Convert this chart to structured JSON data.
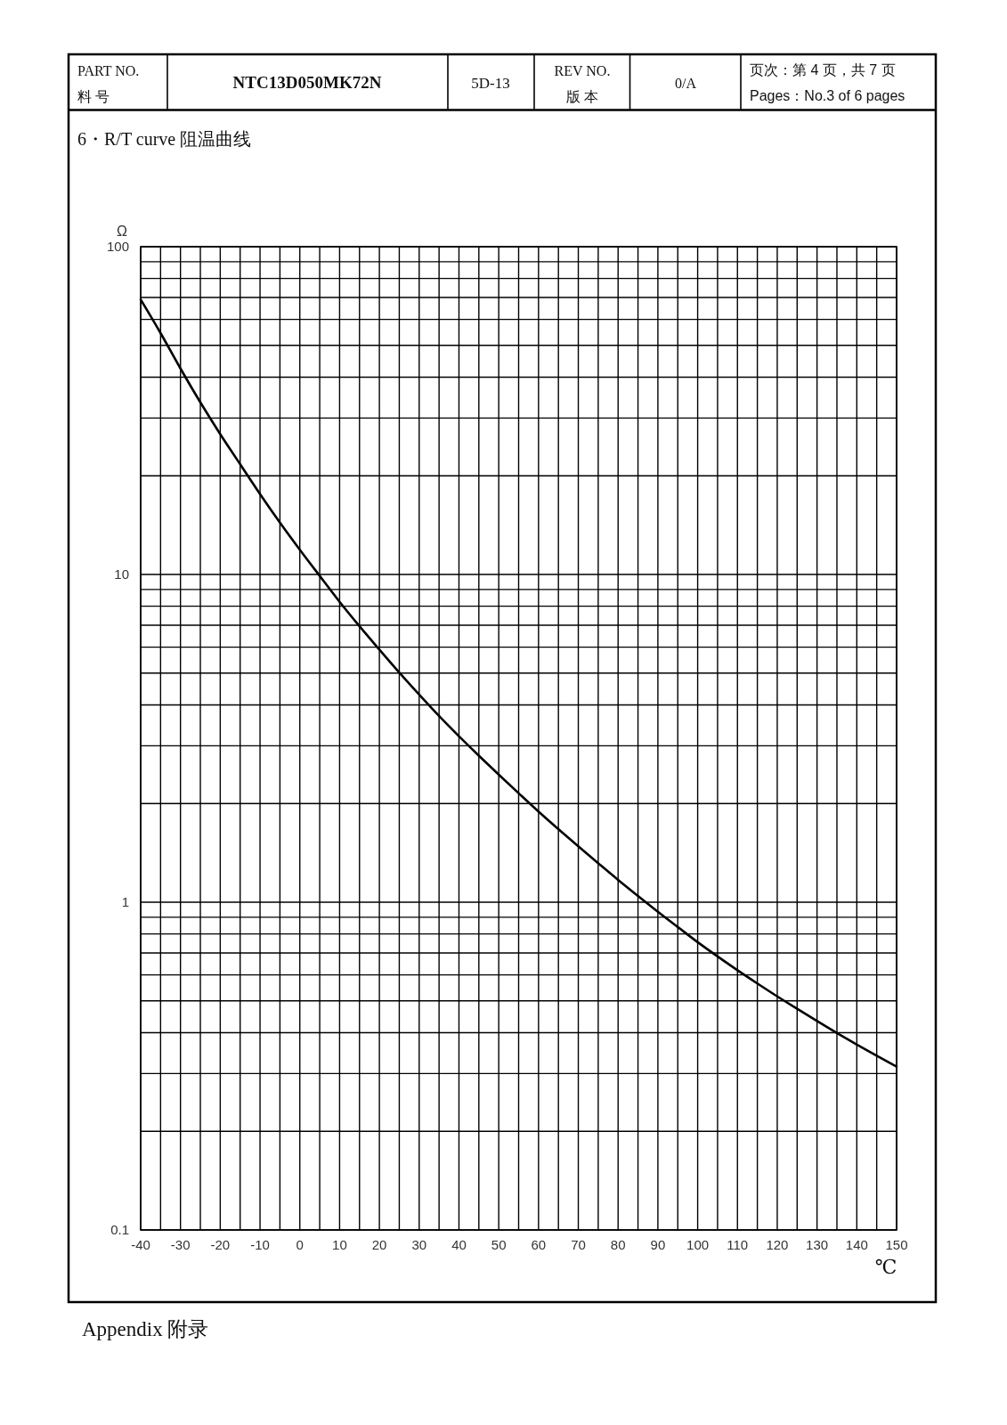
{
  "chart_data": {
    "type": "line",
    "title": "6・R/T curve 阻温曲线",
    "xlabel": "℃",
    "ylabel": "Ω",
    "annotations": [
      "PART NO.",
      "料 号",
      "NTC13D050MK72N",
      "5D-13",
      "REV NO.",
      "版 本",
      "0/A",
      "页次：第 4 页，共 7 页",
      "Pages：No.3 of 6 pages",
      "Appendix 附录"
    ],
    "x": [
      -40,
      -35,
      -30,
      -25,
      -20,
      -15,
      -10,
      -5,
      0,
      5,
      10,
      15,
      20,
      25,
      30,
      35,
      40,
      45,
      50,
      55,
      60,
      65,
      70,
      75,
      80,
      85,
      90,
      95,
      100,
      105,
      110,
      115,
      120,
      125,
      130,
      135,
      140,
      145,
      150
    ],
    "values": [
      69,
      54.5,
      42.5,
      33.5,
      26.8,
      21.7,
      17.6,
      14.4,
      11.9,
      9.9,
      8.25,
      6.95,
      5.9,
      5.02,
      4.3,
      3.7,
      3.21,
      2.8,
      2.45,
      2.15,
      1.89,
      1.67,
      1.48,
      1.315,
      1.17,
      1.045,
      0.935,
      0.84,
      0.755,
      0.683,
      0.62,
      0.565,
      0.516,
      0.473,
      0.434,
      0.399,
      0.368,
      0.34,
      0.315
    ],
    "color": "#000000",
    "xlim": [
      -40,
      150
    ],
    "xticks": [
      -40,
      {
        "value": -35,
        "label": null
      },
      -30,
      {
        "value": -25,
        "label": null
      },
      -20,
      {
        "value": -15,
        "label": null
      },
      -10,
      {
        "value": -5,
        "label": null
      },
      0,
      {
        "value": 5,
        "label": null
      },
      10,
      {
        "value": 15,
        "label": null
      },
      20,
      {
        "value": 25,
        "label": null
      },
      30,
      {
        "value": 35,
        "label": null
      },
      40,
      {
        "value": 45,
        "label": null
      },
      50,
      {
        "value": 55,
        "label": null
      },
      60,
      {
        "value": 65,
        "label": null
      },
      70,
      {
        "value": 75,
        "label": null
      },
      80,
      {
        "value": 85,
        "label": null
      },
      90,
      {
        "value": 95,
        "label": null
      },
      100,
      {
        "value": 105,
        "label": null
      },
      110,
      {
        "value": 115,
        "label": null
      },
      120,
      {
        "value": 125,
        "label": null
      },
      130,
      {
        "value": 135,
        "label": null
      },
      140,
      {
        "value": 145,
        "label": null
      },
      150
    ],
    "ylim": [
      0.1,
      100
    ],
    "yticks": [
      0.1,
      {
        "value": 0.2,
        "label": null
      },
      {
        "value": 0.3,
        "label": null
      },
      {
        "value": 0.4,
        "label": null
      },
      {
        "value": 0.5,
        "label": null
      },
      {
        "value": 0.6,
        "label": null
      },
      {
        "value": 0.7,
        "label": null
      },
      {
        "value": 0.8,
        "label": null
      },
      {
        "value": 0.9,
        "label": null
      },
      1,
      {
        "value": 2,
        "label": null
      },
      {
        "value": 3,
        "label": null
      },
      {
        "value": 4,
        "label": null
      },
      {
        "value": 5,
        "label": null
      },
      {
        "value": 6,
        "label": null
      },
      {
        "value": 7,
        "label": null
      },
      {
        "value": 8,
        "label": null
      },
      {
        "value": 9,
        "label": null
      },
      10,
      {
        "value": 20,
        "label": null
      },
      {
        "value": 30,
        "label": null
      },
      {
        "value": 40,
        "label": null
      },
      {
        "value": 50,
        "label": null
      },
      {
        "value": 60,
        "label": null
      },
      {
        "value": 70,
        "label": null
      },
      {
        "value": 80,
        "label": null
      },
      {
        "value": 90,
        "label": null
      },
      100
    ],
    "log": true,
    "grid": true
  }
}
